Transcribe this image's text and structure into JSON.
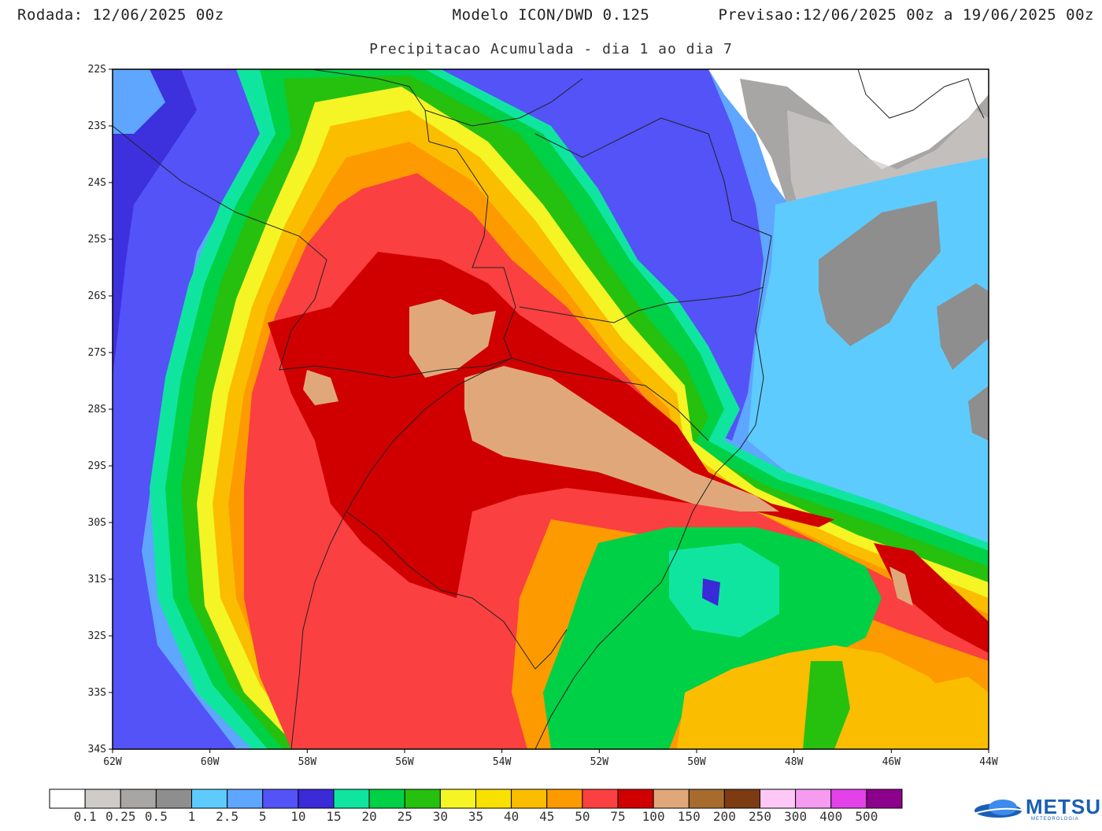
{
  "header": {
    "rodada_label": "Rodada:",
    "rodada_value": "12/06/2025 00z",
    "modelo": "Modelo ICON/DWD 0.125",
    "previsao_label": "Previsao:",
    "previsao_value": "12/06/2025 00z a 19/06/2025 00z"
  },
  "subtitle": "Precipitacao Acumulada - dia 1 ao dia 7",
  "map": {
    "lat_labels": [
      "22S",
      "23S",
      "24S",
      "25S",
      "26S",
      "27S",
      "28S",
      "29S",
      "30S",
      "31S",
      "32S",
      "33S",
      "34S"
    ],
    "lon_labels": [
      "62W",
      "60W",
      "58W",
      "56W",
      "54W",
      "52W",
      "50W",
      "48W",
      "46W",
      "44W"
    ]
  },
  "legend": {
    "labels": [
      "0.1",
      "0.25",
      "0.5",
      "1",
      "2.5",
      "5",
      "10",
      "15",
      "20",
      "25",
      "30",
      "35",
      "40",
      "45",
      "50",
      "75",
      "100",
      "150",
      "200",
      "250",
      "300",
      "400",
      "500"
    ],
    "colors": [
      "#ffffff",
      "#cfcbc8",
      "#a8a6a4",
      "#8e8e8e",
      "#5ecbff",
      "#5ea6ff",
      "#5353f7",
      "#3a2ad8",
      "#10e5a0",
      "#00d045",
      "#26c00e",
      "#f5f525",
      "#f8e000",
      "#fbbd00",
      "#fd9a00",
      "#fa4040",
      "#d00000",
      "#e0a87a",
      "#a76b2e",
      "#7d3b12",
      "#fdc8f5",
      "#f59bf0",
      "#e342e9",
      "#8c008c"
    ]
  },
  "branding": {
    "logo_text": "METSUL",
    "logo_sub": "METEOROLOGIA"
  }
}
